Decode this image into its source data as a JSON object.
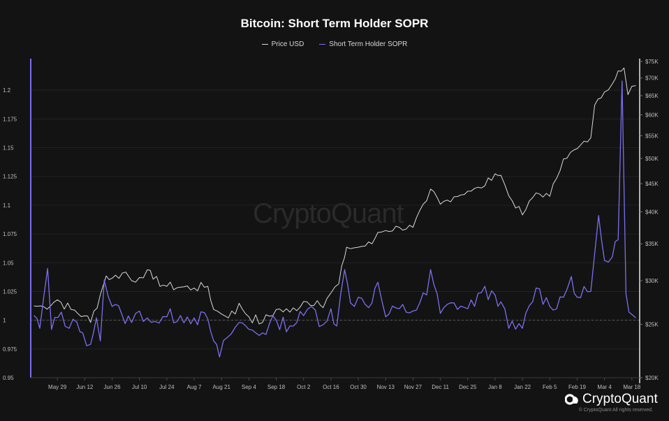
{
  "chart_data": {
    "type": "line",
    "title": "Bitcoin: Short Term Holder SOPR",
    "x_ticks": [
      "May 29",
      "Jun 12",
      "Jun 26",
      "Jul 10",
      "Jul 24",
      "Aug 7",
      "Aug 21",
      "Sep 4",
      "Sep 18",
      "Oct 2",
      "Oct 16",
      "Oct 30",
      "Nov 13",
      "Nov 27",
      "Dec 11",
      "Dec 25",
      "Jan 8",
      "Jan 22",
      "Feb 5",
      "Feb 19",
      "Mar 4",
      "Mar 18"
    ],
    "y_left": {
      "ticks": [
        "0.95",
        "0.975",
        "1",
        "1.025",
        "1.05",
        "1.075",
        "1.1",
        "1.125",
        "1.15",
        "1.175",
        "1.2"
      ],
      "range": [
        0.95,
        1.225
      ]
    },
    "y_right": {
      "ticks": [
        "$20K",
        "$25K",
        "$30K",
        "$35K",
        "$40K",
        "$45K",
        "$50K",
        "$55K",
        "$60K",
        "$65K",
        "$70K",
        "$75K"
      ],
      "range": [
        20000,
        75000
      ],
      "scale": "log"
    },
    "reference_line": 1.0,
    "grid": "horizontal",
    "legend_position": "top-center",
    "series": [
      {
        "name": "Price USD",
        "axis": "right",
        "color": "#d9d9d9",
        "points": [
          [
            "2023-05-17",
            27000
          ],
          [
            "2023-05-22",
            26900
          ],
          [
            "2023-05-29",
            27700
          ],
          [
            "2023-06-05",
            26600
          ],
          [
            "2023-06-12",
            25900
          ],
          [
            "2023-06-15",
            25200
          ],
          [
            "2023-06-20",
            28300
          ],
          [
            "2023-06-23",
            30600
          ],
          [
            "2023-06-26",
            30300
          ],
          [
            "2023-07-03",
            31100
          ],
          [
            "2023-07-06",
            30000
          ],
          [
            "2023-07-10",
            30400
          ],
          [
            "2023-07-14",
            31400
          ],
          [
            "2023-07-17",
            30200
          ],
          [
            "2023-07-24",
            29300
          ],
          [
            "2023-07-31",
            29200
          ],
          [
            "2023-08-07",
            29100
          ],
          [
            "2023-08-14",
            29300
          ],
          [
            "2023-08-17",
            26600
          ],
          [
            "2023-08-21",
            26100
          ],
          [
            "2023-08-28",
            26100
          ],
          [
            "2023-08-30",
            27300
          ],
          [
            "2023-09-04",
            25800
          ],
          [
            "2023-09-11",
            25200
          ],
          [
            "2023-09-18",
            26600
          ],
          [
            "2023-09-25",
            26300
          ],
          [
            "2023-10-02",
            27500
          ],
          [
            "2023-10-09",
            27600
          ],
          [
            "2023-10-12",
            26800
          ],
          [
            "2023-10-16",
            28500
          ],
          [
            "2023-10-20",
            29600
          ],
          [
            "2023-10-23",
            33100
          ],
          [
            "2023-10-24",
            34500
          ],
          [
            "2023-10-30",
            34500
          ],
          [
            "2023-11-06",
            35000
          ],
          [
            "2023-11-09",
            36700
          ],
          [
            "2023-11-13",
            37000
          ],
          [
            "2023-11-20",
            37500
          ],
          [
            "2023-11-27",
            37500
          ],
          [
            "2023-12-04",
            41900
          ],
          [
            "2023-12-06",
            44000
          ],
          [
            "2023-12-11",
            41300
          ],
          [
            "2023-12-18",
            42600
          ],
          [
            "2023-12-25",
            43600
          ],
          [
            "2024-01-01",
            44200
          ],
          [
            "2024-01-08",
            46900
          ],
          [
            "2024-01-11",
            46600
          ],
          [
            "2024-01-15",
            42800
          ],
          [
            "2024-01-22",
            39500
          ],
          [
            "2024-01-29",
            43300
          ],
          [
            "2024-02-05",
            42700
          ],
          [
            "2024-02-12",
            49900
          ],
          [
            "2024-02-19",
            52100
          ],
          [
            "2024-02-26",
            54500
          ],
          [
            "2024-02-28",
            62500
          ],
          [
            "2024-03-04",
            66000
          ],
          [
            "2024-03-08",
            68300
          ],
          [
            "2024-03-11",
            72100
          ],
          [
            "2024-03-14",
            73000
          ],
          [
            "2024-03-16",
            65300
          ],
          [
            "2024-03-18",
            67600
          ],
          [
            "2024-03-20",
            67800
          ]
        ]
      },
      {
        "name": "Short Term Holder SOPR",
        "axis": "left",
        "color": "#7b6ff0",
        "points": [
          [
            "2023-05-17",
            1.004
          ],
          [
            "2023-05-20",
            0.993
          ],
          [
            "2023-05-24",
            1.045
          ],
          [
            "2023-05-26",
            0.992
          ],
          [
            "2023-05-31",
            1.007
          ],
          [
            "2023-06-04",
            0.993
          ],
          [
            "2023-06-08",
            0.998
          ],
          [
            "2023-06-11",
            0.989
          ],
          [
            "2023-06-15",
            0.979
          ],
          [
            "2023-06-18",
            1.002
          ],
          [
            "2023-06-20",
            0.982
          ],
          [
            "2023-06-22",
            1.035
          ],
          [
            "2023-06-26",
            1.012
          ],
          [
            "2023-07-01",
            1.005
          ],
          [
            "2023-07-06",
            0.998
          ],
          [
            "2023-07-10",
            1.008
          ],
          [
            "2023-07-14",
            1.002
          ],
          [
            "2023-07-18",
            0.999
          ],
          [
            "2023-07-24",
            1.003
          ],
          [
            "2023-07-31",
            1.004
          ],
          [
            "2023-08-07",
            1.002
          ],
          [
            "2023-08-14",
            1.001
          ],
          [
            "2023-08-17",
            0.982
          ],
          [
            "2023-08-20",
            0.968
          ],
          [
            "2023-08-24",
            0.985
          ],
          [
            "2023-08-30",
            0.998
          ],
          [
            "2023-09-04",
            0.992
          ],
          [
            "2023-09-11",
            0.989
          ],
          [
            "2023-09-18",
            1.0
          ],
          [
            "2023-09-25",
            0.995
          ],
          [
            "2023-10-02",
            1.004
          ],
          [
            "2023-10-06",
            1.012
          ],
          [
            "2023-10-12",
            0.996
          ],
          [
            "2023-10-16",
            1.01
          ],
          [
            "2023-10-19",
            0.995
          ],
          [
            "2023-10-23",
            1.044
          ],
          [
            "2023-10-26",
            1.015
          ],
          [
            "2023-10-30",
            1.02
          ],
          [
            "2023-11-06",
            1.015
          ],
          [
            "2023-11-09",
            1.033
          ],
          [
            "2023-11-13",
            1.003
          ],
          [
            "2023-11-20",
            1.01
          ],
          [
            "2023-11-27",
            1.008
          ],
          [
            "2023-12-04",
            1.022
          ],
          [
            "2023-12-06",
            1.044
          ],
          [
            "2023-12-11",
            1.006
          ],
          [
            "2023-12-18",
            1.015
          ],
          [
            "2023-12-25",
            1.01
          ],
          [
            "2024-01-01",
            1.024
          ],
          [
            "2024-01-08",
            1.022
          ],
          [
            "2024-01-11",
            1.016
          ],
          [
            "2024-01-15",
            0.993
          ],
          [
            "2024-01-22",
            0.993
          ],
          [
            "2024-01-29",
            1.028
          ],
          [
            "2024-02-05",
            1.012
          ],
          [
            "2024-02-12",
            1.02
          ],
          [
            "2024-02-16",
            1.038
          ],
          [
            "2024-02-19",
            1.02
          ],
          [
            "2024-02-26",
            1.025
          ],
          [
            "2024-02-28",
            1.058
          ],
          [
            "2024-03-01",
            1.091
          ],
          [
            "2024-03-04",
            1.052
          ],
          [
            "2024-03-08",
            1.055
          ],
          [
            "2024-03-11",
            1.07
          ],
          [
            "2024-03-13",
            1.208
          ],
          [
            "2024-03-15",
            1.023
          ],
          [
            "2024-03-18",
            1.005
          ],
          [
            "2024-03-20",
            1.002
          ]
        ]
      }
    ]
  },
  "watermark": "CryptoQuant",
  "brand": {
    "name": "CryptoQuant",
    "copyright": "© CryptoQuant All rights reserved."
  }
}
